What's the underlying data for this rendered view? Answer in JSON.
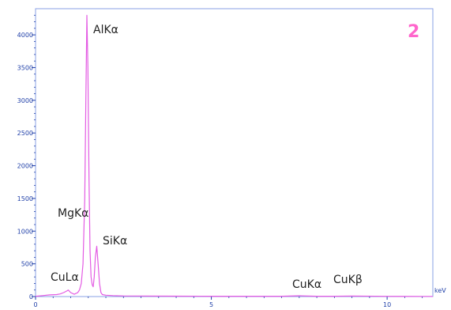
{
  "chart_data": {
    "type": "line",
    "panel_label": "2",
    "xlabel": "keV",
    "ylabel": "",
    "xlim": [
      0,
      11.3
    ],
    "ylim": [
      0,
      4400
    ],
    "x_ticks": [
      "0",
      "5",
      "10"
    ],
    "y_ticks": [
      "0",
      "500",
      "1000",
      "1500",
      "2000",
      "2500",
      "3000",
      "3500",
      "4000"
    ],
    "grid": false,
    "series": [
      {
        "color": "#e35be3",
        "x": [
          0,
          0.2,
          0.4,
          0.6,
          0.7,
          0.8,
          0.9,
          0.93,
          1.0,
          1.1,
          1.2,
          1.25,
          1.3,
          1.35,
          1.4,
          1.43,
          1.46,
          1.49,
          1.52,
          1.55,
          1.58,
          1.61,
          1.64,
          1.67,
          1.7,
          1.74,
          1.78,
          1.82,
          1.86,
          1.9,
          2.0,
          2.2,
          2.5,
          3.0,
          4.0,
          5.0,
          6.0,
          7.0,
          7.5,
          8.0,
          8.5,
          9.0,
          10.0,
          11.0,
          11.3
        ],
        "y": [
          5,
          15,
          25,
          30,
          40,
          60,
          90,
          100,
          60,
          35,
          60,
          100,
          200,
          500,
          1500,
          3000,
          4300,
          3500,
          1800,
          700,
          300,
          180,
          150,
          300,
          600,
          770,
          500,
          200,
          60,
          30,
          20,
          15,
          10,
          8,
          6,
          5,
          5,
          5,
          12,
          5,
          5,
          8,
          4,
          3,
          3
        ]
      }
    ],
    "annotations": [
      {
        "text": "AlKα",
        "x": 1.49,
        "y": 4300
      },
      {
        "text": "MgKα",
        "x": 1.25,
        "y": 1250
      },
      {
        "text": "SiKα",
        "x": 1.74,
        "y": 770
      },
      {
        "text": "CuLα",
        "x": 0.93,
        "y": 100
      },
      {
        "text": "CuKα",
        "x": 8.04,
        "y": 60
      },
      {
        "text": "CuKβ",
        "x": 8.9,
        "y": 60
      }
    ]
  }
}
